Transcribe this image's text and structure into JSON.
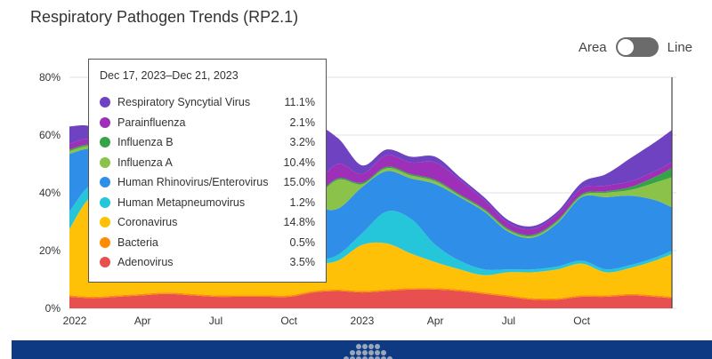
{
  "page": {
    "title": "Respiratory Pathogen Trends (RP2.1)"
  },
  "toggle": {
    "left_label": "Area",
    "right_label": "Line"
  },
  "tooltip": {
    "date": "Dec 17, 2023–Dec 21, 2023",
    "rows": [
      {
        "name": "Respiratory Syncytial Virus",
        "value": "11.1%",
        "color": "#6f42c1"
      },
      {
        "name": "Parainfluenza",
        "value": "2.1%",
        "color": "#9e2fb8"
      },
      {
        "name": "Influenza B",
        "value": "3.2%",
        "color": "#37a347"
      },
      {
        "name": "Influenza A",
        "value": "10.4%",
        "color": "#8bc34a"
      },
      {
        "name": "Human Rhinovirus/Enterovirus",
        "value": "15.0%",
        "color": "#2f8fe8"
      },
      {
        "name": "Human Metapneumovirus",
        "value": "1.2%",
        "color": "#26c6da"
      },
      {
        "name": "Coronavirus",
        "value": "14.8%",
        "color": "#ffc107"
      },
      {
        "name": "Bacteria",
        "value": "0.5%",
        "color": "#ff8c00"
      },
      {
        "name": "Adenovirus",
        "value": "3.5%",
        "color": "#e85050"
      }
    ]
  },
  "chart_data": {
    "type": "area",
    "stacked": true,
    "ylim": [
      0,
      80
    ],
    "yticks": [
      "0%",
      "20%",
      "40%",
      "60%",
      "80%"
    ],
    "ytick_values": [
      0,
      20,
      40,
      60,
      80
    ],
    "xticks": [
      "2022",
      "Apr",
      "Jul",
      "Oct",
      "2023",
      "Apr",
      "Jul",
      "Oct"
    ],
    "xtick_months": [
      0,
      3,
      6,
      9,
      12,
      15,
      18,
      21
    ],
    "xlim_months": [
      0,
      24.7
    ],
    "x_months": [
      0,
      1,
      2,
      3,
      4,
      5,
      6,
      7,
      8,
      9,
      10,
      11,
      12,
      13,
      14,
      15,
      16,
      17,
      18,
      19,
      20,
      21,
      22,
      23,
      24,
      24.7
    ],
    "series": [
      {
        "name": "Adenovirus",
        "color": "#e85050",
        "values": [
          4,
          3.5,
          4,
          4.5,
          5,
          4.5,
          4,
          4,
          4,
          4,
          5.5,
          6,
          5.5,
          6,
          6.5,
          6.5,
          6,
          5,
          4,
          3,
          3,
          4,
          4,
          4.5,
          4,
          3.5
        ]
      },
      {
        "name": "Bacteria",
        "color": "#ff8c00",
        "values": [
          0.5,
          0.5,
          0.5,
          0.5,
          0.5,
          0.5,
          0.5,
          0.5,
          0.5,
          0.5,
          0.5,
          0.5,
          0.5,
          0.5,
          0.5,
          0.5,
          0.5,
          0.5,
          0.5,
          0.5,
          0.5,
          0.5,
          0.5,
          0.5,
          0.5,
          0.5
        ]
      },
      {
        "name": "Coronavirus",
        "color": "#ffc107",
        "values": [
          23,
          35,
          25,
          14,
          9,
          7,
          6,
          6,
          6,
          7,
          9,
          10,
          16,
          16,
          12,
          9,
          7,
          6,
          8,
          9,
          10,
          11,
          8,
          9,
          12,
          14.8
        ]
      },
      {
        "name": "Human Metapneumovirus",
        "color": "#26c6da",
        "values": [
          6,
          4,
          4,
          4,
          3,
          3,
          3,
          2,
          1,
          1,
          1,
          2,
          4,
          11,
          12,
          6,
          3,
          2,
          1,
          1,
          1,
          1,
          1,
          1,
          1,
          1.2
        ]
      },
      {
        "name": "Human Rhinovirus/Enterovirus",
        "color": "#2f8fe8",
        "values": [
          20,
          12,
          14,
          17,
          18,
          20,
          22,
          24,
          22,
          23,
          19,
          16,
          16,
          14,
          14,
          21,
          22,
          20,
          13,
          11,
          15,
          22,
          25,
          24,
          20,
          15
        ]
      },
      {
        "name": "Influenza A",
        "color": "#8bc34a",
        "values": [
          1,
          1,
          1,
          1,
          1,
          1,
          0.5,
          0.5,
          0.5,
          1,
          3,
          10,
          1,
          1,
          1,
          1,
          0.5,
          0.5,
          0.5,
          0.5,
          0.5,
          0.5,
          1.5,
          2,
          6,
          10.4
        ]
      },
      {
        "name": "Influenza B",
        "color": "#37a347",
        "values": [
          0.5,
          0.5,
          0.5,
          1,
          1,
          0.5,
          0.5,
          0.5,
          0.5,
          0.5,
          0.5,
          0.5,
          0.5,
          0.5,
          0.5,
          0.5,
          0.5,
          0.5,
          0.5,
          0.5,
          0.5,
          0.5,
          0.5,
          1,
          2,
          3.2
        ]
      },
      {
        "name": "Parainfluenza",
        "color": "#9e2fb8",
        "values": [
          2,
          2,
          2,
          3,
          5,
          6,
          5,
          5,
          4,
          3,
          4,
          5,
          3,
          4,
          4,
          6,
          5,
          3,
          2,
          2,
          2,
          2,
          2,
          2,
          2,
          2.1
        ]
      },
      {
        "name": "Respiratory Syncytial Virus",
        "color": "#6f42c1",
        "values": [
          6,
          4,
          2,
          2,
          2,
          2,
          2,
          2,
          8,
          11,
          20,
          9,
          3,
          2,
          2,
          2,
          1,
          1,
          1,
          1,
          1,
          2,
          4,
          8,
          10,
          11.1
        ]
      }
    ],
    "hover_month": 24.7
  }
}
